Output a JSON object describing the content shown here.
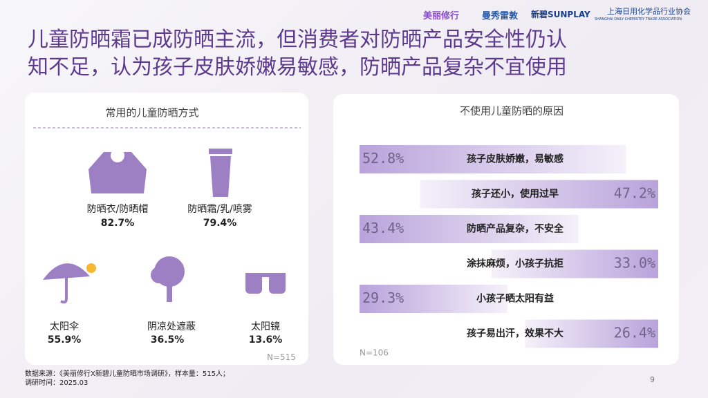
{
  "header": {
    "logos": [
      "美丽修行",
      "曼秀雷敦",
      "新碧SUNPLAY",
      "上海日用化学品行业协会",
      "SHANGHAI DAILY CHEMISTRY TRADE ASSOCIATION"
    ],
    "title_lines": [
      "儿童防晒霜已成防晒主流，但消费者对防晒产品安全性仍认",
      "知不足，认为孩子皮肤娇嫩易敏感，防晒产品复杂不宜使用"
    ]
  },
  "left_panel": {
    "heading": "常用的儿童防晒方式",
    "items": [
      {
        "label": "防晒衣/防晒帽",
        "value": "82.7%"
      },
      {
        "label": "防晒霜/乳/喷雾",
        "value": "79.4%"
      },
      {
        "label": "太阳伞",
        "value": "55.9%"
      },
      {
        "label": "阴凉处遮蔽",
        "value": "36.5%"
      },
      {
        "label": "太阳镜",
        "value": "13.6%"
      }
    ],
    "sample": "N=515"
  },
  "chart_data": {
    "type": "bar",
    "title": "不使用儿童防晒的原因",
    "categories": [
      "孩子皮肤娇嫩，易敏感",
      "孩子还小，使用过早",
      "防晒产品复杂，不安全",
      "涂抹麻烦，小孩子抗拒",
      "小孩子晒太阳有益",
      "孩子易出汗，效果不大"
    ],
    "values": [
      52.8,
      47.2,
      43.4,
      33.0,
      29.3,
      26.4
    ],
    "value_labels": [
      "52.8%",
      "47.2%",
      "43.4%",
      "33.0%",
      "29.3%",
      "26.4%"
    ],
    "color": "#b9a3db",
    "sample": "N=106"
  },
  "footer": {
    "source": "数据来源：《美丽修行X新碧儿童防晒市场调研》，样本量：515人；",
    "date": "调研时间：2025.03",
    "page": "9"
  }
}
